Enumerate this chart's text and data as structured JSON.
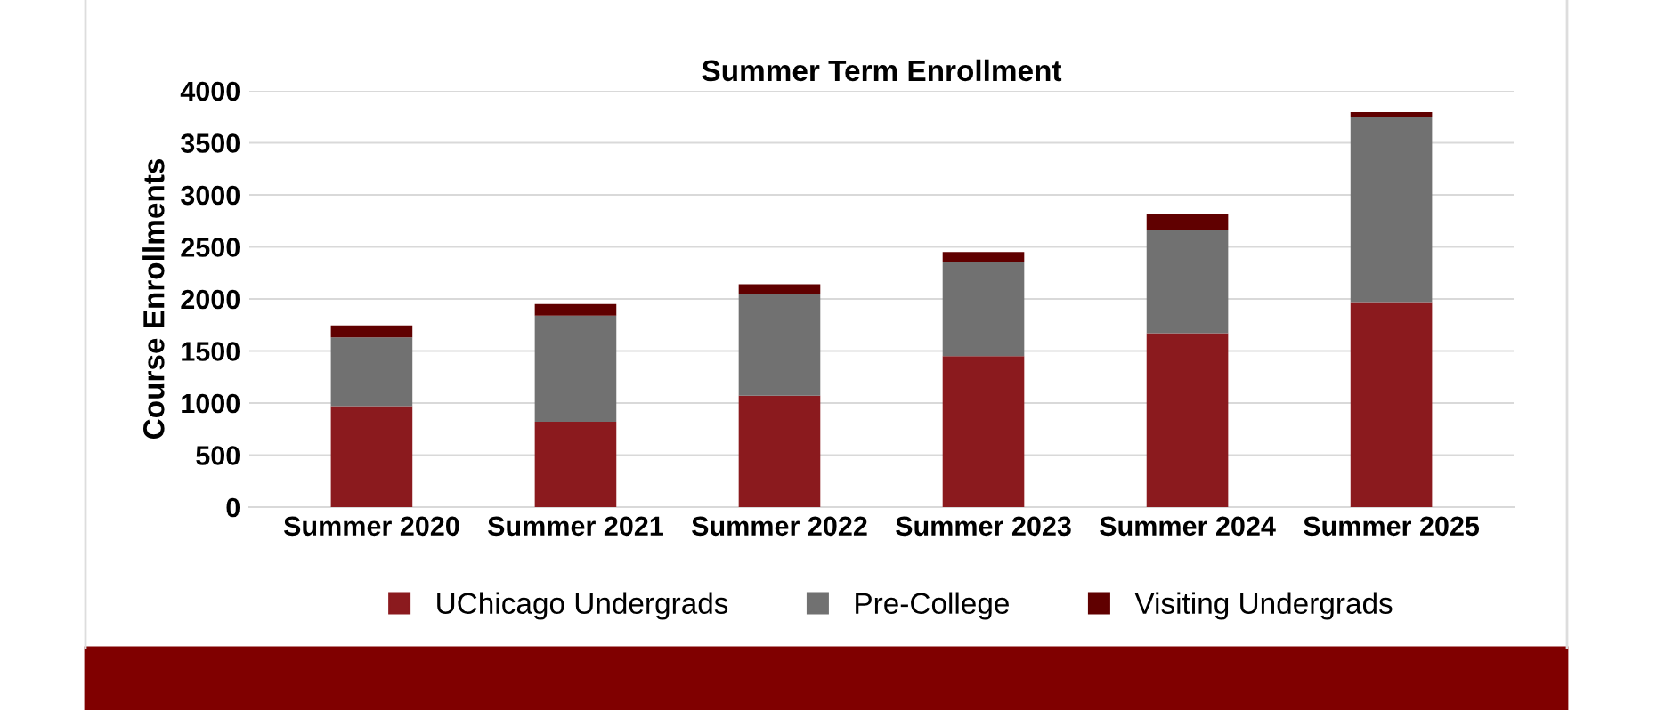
{
  "chart_data": {
    "type": "bar",
    "title": "Summer Term Enrollment",
    "ylabel": "Course Enrollments",
    "categories": [
      "Summer 2020",
      "Summer 2021",
      "Summer 2022",
      "Summer 2023",
      "Summer 2024",
      "Summer 2025"
    ],
    "stacked": true,
    "series": [
      {
        "name": "UChicago Undergrads",
        "color": "#8b1a1e",
        "values": [
          970,
          820,
          1070,
          1450,
          1670,
          1970
        ]
      },
      {
        "name": "Pre-College",
        "color": "#717171",
        "values": [
          660,
          1020,
          980,
          910,
          990,
          1780
        ]
      },
      {
        "name": "Visiting Undergrads",
        "color": "#600000",
        "values": [
          115,
          110,
          90,
          90,
          160,
          45
        ]
      }
    ],
    "ylim": [
      0,
      4000
    ],
    "yticks": [
      0,
      500,
      1000,
      1500,
      2000,
      2500,
      3000,
      3500,
      4000
    ],
    "grid": "y",
    "legend": "bottom"
  }
}
